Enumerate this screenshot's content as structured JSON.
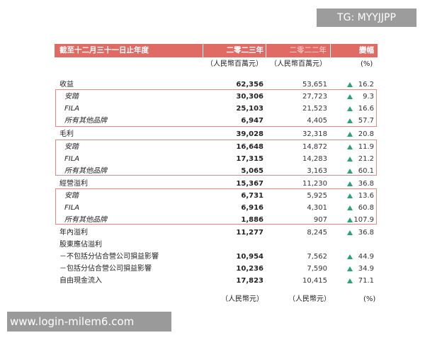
{
  "watermarks": {
    "top": "TG: MYYJJPP",
    "bottom": "www.login-milem6.com"
  },
  "header": {
    "label": "截至十二月三十一日止年度",
    "year_current": "二零二三年",
    "year_prior": "二零二二年",
    "change": "變幅"
  },
  "units": {
    "current": "（人民幣百萬元）",
    "prior": "（人民幣百萬元）",
    "change": "(%)"
  },
  "rows": [
    {
      "label": "收益",
      "sub": false,
      "current": "62,356",
      "prior": "53,651",
      "change": "16.2"
    },
    {
      "label": "安踏",
      "sub": true,
      "current": "30,306",
      "prior": "27,723",
      "change": "9.3"
    },
    {
      "label": "FILA",
      "sub": true,
      "current": "25,103",
      "prior": "21,523",
      "change": "16.6"
    },
    {
      "label": "所有其他品牌",
      "sub": true,
      "current": "6,947",
      "prior": "4,405",
      "change": "57.7"
    },
    {
      "label": "毛利",
      "sub": false,
      "current": "39,028",
      "prior": "32,318",
      "change": "20.8"
    },
    {
      "label": "安踏",
      "sub": true,
      "current": "16,648",
      "prior": "14,872",
      "change": "11.9"
    },
    {
      "label": "FILA",
      "sub": true,
      "current": "17,315",
      "prior": "14,283",
      "change": "21.2"
    },
    {
      "label": "所有其他品牌",
      "sub": true,
      "current": "5,065",
      "prior": "3,163",
      "change": "60.1"
    },
    {
      "label": "經營溢利",
      "sub": false,
      "current": "15,367",
      "prior": "11,230",
      "change": "36.8"
    },
    {
      "label": "安踏",
      "sub": true,
      "current": "6,731",
      "prior": "5,925",
      "change": "13.6"
    },
    {
      "label": "FILA",
      "sub": true,
      "current": "6,916",
      "prior": "4,301",
      "change": "60.8"
    },
    {
      "label": "所有其他品牌",
      "sub": true,
      "current": "1,886",
      "prior": "907",
      "change": "107.9"
    },
    {
      "label": "年內溢利",
      "sub": false,
      "current": "11,277",
      "prior": "8,245",
      "change": "36.8"
    },
    {
      "label": "股東應佔溢利",
      "sub": false,
      "current": "",
      "prior": "",
      "change": ""
    },
    {
      "label": "－不包括分佔合營公司損益影響",
      "sub": false,
      "current": "10,954",
      "prior": "7,562",
      "change": "44.9"
    },
    {
      "label": "－包括分佔合營公司損益影響",
      "sub": false,
      "current": "10,236",
      "prior": "7,590",
      "change": "34.9"
    },
    {
      "label": "自由現金流入",
      "sub": false,
      "current": "17,823",
      "prior": "10,415",
      "change": "71.1"
    }
  ],
  "footer_units": {
    "current": "（人民幣元）",
    "prior": "（人民幣元）",
    "change": "(%)"
  },
  "colors": {
    "header_bg": "#e06b64",
    "box_border": "#e38a84",
    "up_arrow": "#2aa37b"
  }
}
